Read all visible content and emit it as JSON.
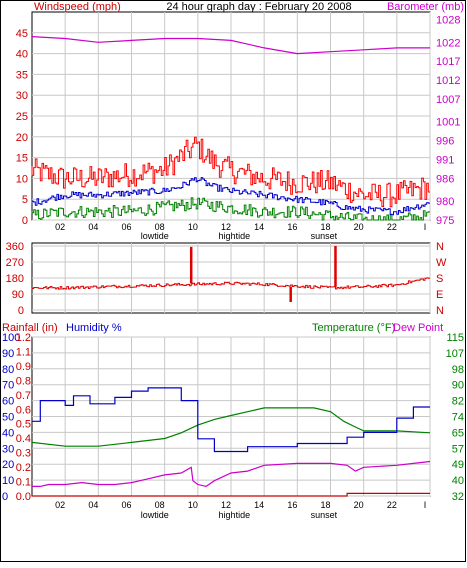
{
  "title": "24 hour graph day : February 20 2008",
  "colors": {
    "windspeed": "#e00000",
    "gust": "#ff0000",
    "wind_avg": "#0000cc",
    "wind_min": "#008000",
    "barometer": "#cc00cc",
    "direction": "#e00000",
    "temperature": "#008000",
    "humidity": "#0000cc",
    "dew_point": "#cc00cc",
    "rainfall": "#cc0000",
    "grid": "#c8c8c8"
  },
  "chart_data": [
    {
      "type": "line",
      "name": "wind-barometer",
      "title": "24 hour graph day : February 20 2008",
      "left_label": "Windspeed (mph)",
      "right_label": "Barometer (mb)",
      "y_left_ticks": [
        0,
        5,
        10,
        15,
        20,
        25,
        30,
        35,
        40,
        45
      ],
      "ylim_left": [
        0,
        50
      ],
      "y_right_ticks": [
        975,
        980,
        986,
        991,
        996,
        1001,
        1007,
        1012,
        1017,
        1022,
        1028
      ],
      "ylim_right": [
        975,
        1030
      ],
      "x_ticks": [
        "02",
        "04",
        "06",
        "08",
        "10",
        "12",
        "14",
        "16",
        "18",
        "20",
        "22",
        "I"
      ],
      "x_annotations": [
        {
          "label": "lowtide",
          "x": 7.4
        },
        {
          "label": "hightide",
          "x": 12.2
        },
        {
          "label": "sunset",
          "x": 17.6
        }
      ],
      "grid": true,
      "barometer": {
        "x": [
          0,
          2,
          4,
          6,
          8,
          10,
          12,
          14,
          16,
          18,
          20,
          22,
          24
        ],
        "values": [
          1023.5,
          1023,
          1022,
          1022.5,
          1023,
          1023,
          1022.5,
          1020.5,
          1019,
          1019.5,
          1020,
          1020.5,
          1020.5
        ]
      },
      "wind_avg": {
        "x": [
          0,
          2,
          4,
          6,
          8,
          9,
          10,
          11,
          12,
          14,
          16,
          18,
          19,
          20,
          22,
          23,
          24
        ],
        "values": [
          4,
          6,
          6,
          6.5,
          7,
          8,
          10,
          8,
          7,
          6,
          5,
          4,
          3,
          2.5,
          2,
          3,
          4
        ]
      },
      "wind_gust": {
        "x": [
          0,
          2,
          4,
          6,
          8,
          9,
          10,
          11,
          12,
          14,
          16,
          18,
          20,
          22,
          24
        ],
        "values": [
          12,
          10,
          10,
          11,
          12,
          15,
          18,
          14,
          12,
          10,
          9,
          9,
          6,
          6,
          8
        ]
      },
      "wind_min": {
        "x": [
          0,
          2,
          4,
          6,
          8,
          10,
          12,
          14,
          16,
          18,
          20,
          22,
          24
        ],
        "values": [
          1,
          2,
          2,
          2,
          3,
          4,
          3,
          2,
          2,
          1,
          0,
          0,
          1
        ]
      }
    },
    {
      "type": "line",
      "name": "wind-direction",
      "y_left_ticks": [
        "360",
        "270",
        "180",
        "90",
        "0"
      ],
      "y_left_values": [
        360,
        270,
        180,
        90,
        0
      ],
      "ylim": [
        0,
        360
      ],
      "y_right_ticks": [
        "N",
        "W",
        "S",
        "E",
        "N"
      ],
      "grid": true,
      "direction": {
        "x": [
          0,
          2,
          4,
          6,
          8,
          10,
          12,
          14,
          16,
          18,
          20,
          22,
          24
        ],
        "values": [
          125,
          125,
          130,
          135,
          140,
          145,
          150,
          145,
          135,
          125,
          130,
          140,
          180
        ]
      },
      "spikes": [
        {
          "x": 9.6,
          "from": 150,
          "to": 355
        },
        {
          "x": 15.6,
          "from": 130,
          "to": 45
        },
        {
          "x": 18.3,
          "from": 130,
          "to": 360
        }
      ]
    },
    {
      "type": "line",
      "name": "temp-humidity-rain",
      "left_label_rain": "Rainfall (in)",
      "left_label_humidity": "Humidity %",
      "right_label_temp": "Temperature (°F)",
      "right_label_dew": "Dew Point",
      "y_humidity_ticks": [
        "0",
        "10",
        "20",
        "30",
        "40",
        "50",
        "60",
        "70",
        "80",
        "90",
        "100"
      ],
      "y_rain_ticks": [
        "0.0",
        "0.1",
        "0.2",
        "0.3",
        "0.4",
        "0.5",
        "0.6",
        "0.7",
        "0.8",
        "0.9",
        "1.1",
        "1.2"
      ],
      "y_temp_ticks": [
        "32",
        "40",
        "49",
        "57",
        "65",
        "74",
        "82",
        "90",
        "98",
        "107",
        "115"
      ],
      "ylim_humidity": [
        0,
        100
      ],
      "ylim_temp": [
        32,
        115
      ],
      "x_ticks": [
        "02",
        "04",
        "06",
        "08",
        "10",
        "12",
        "14",
        "16",
        "18",
        "20",
        "22",
        "I"
      ],
      "x_annotations": [
        {
          "label": "lowtide",
          "x": 7.4
        },
        {
          "label": "hightide",
          "x": 12.2
        },
        {
          "label": "sunset",
          "x": 17.6
        }
      ],
      "grid": true,
      "humidity": {
        "x": [
          0,
          0.5,
          0.5,
          2,
          2,
          2.5,
          2.5,
          3.5,
          3.5,
          5,
          5,
          6,
          6,
          7,
          7,
          9,
          9,
          10,
          10,
          11,
          11,
          13,
          13,
          16,
          16,
          19,
          19,
          20,
          20,
          22,
          22,
          23,
          23,
          24
        ],
        "values": [
          47,
          47,
          60,
          60,
          57,
          57,
          63,
          63,
          58,
          58,
          62,
          62,
          66,
          66,
          68,
          68,
          60,
          60,
          36,
          36,
          28,
          28,
          31,
          31,
          33,
          33,
          37,
          37,
          40,
          40,
          49,
          49,
          56,
          56
        ]
      },
      "temperature": {
        "x": [
          0,
          2,
          4,
          6,
          8,
          9,
          10,
          11,
          12,
          13,
          14,
          15,
          16,
          17,
          18,
          18.8,
          19.5,
          20,
          22,
          24
        ],
        "values": [
          60,
          58,
          58,
          60,
          62,
          65,
          69,
          72,
          74,
          76,
          78,
          78,
          78,
          78,
          76,
          71,
          68,
          66,
          66,
          65
        ]
      },
      "dew_point": {
        "x": [
          0,
          0.5,
          1,
          2,
          3,
          4,
          5,
          6,
          7,
          8,
          9,
          9.6,
          9.7,
          10,
          10.5,
          11,
          12,
          13,
          14,
          16,
          18,
          19,
          19.5,
          20,
          22,
          23,
          24
        ],
        "values": [
          37,
          37,
          38,
          38,
          39,
          38,
          38,
          39,
          41,
          43,
          44,
          47,
          40,
          38,
          37,
          40,
          44,
          45,
          48,
          49,
          49,
          48,
          45,
          47,
          48,
          49,
          50
        ]
      },
      "rainfall": {
        "x": [
          0,
          19,
          19,
          24
        ],
        "values": [
          0.0,
          0.0,
          0.02,
          0.02
        ]
      }
    }
  ]
}
